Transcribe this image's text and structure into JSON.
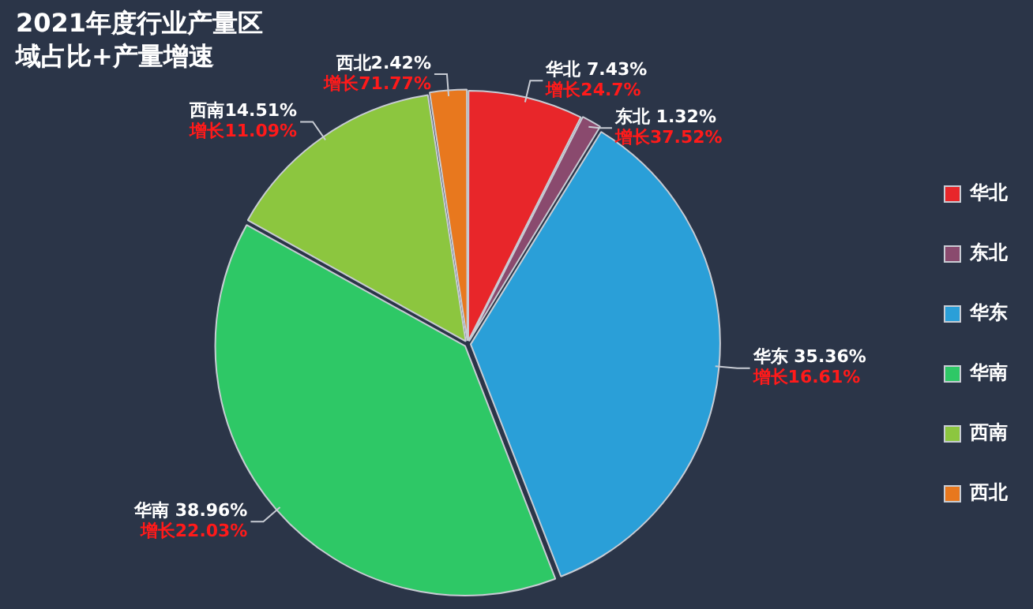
{
  "chart_data": {
    "type": "pie",
    "title": "2021年度行业产量区域占比+产量增速",
    "categories": [
      "华北",
      "东北",
      "华东",
      "华南",
      "西南",
      "西北"
    ],
    "values": [
      7.43,
      1.32,
      35.36,
      38.96,
      14.51,
      2.42
    ],
    "colors": [
      "#e8262a",
      "#8a4a6e",
      "#2a9fd8",
      "#2ec866",
      "#8cc63f",
      "#e8781e"
    ],
    "value_labels": [
      "华北 7.43%",
      "东北 1.32%",
      "华东 35.36%",
      "华南 38.96%",
      "西南14.51%",
      "西北2.42%"
    ],
    "annotations": [
      {
        "text": "增长24.7%",
        "x": "华北"
      },
      {
        "text": "增长37.52%",
        "x": "东北"
      },
      {
        "text": "增长16.61%",
        "x": "华东"
      },
      {
        "text": "增长22.03%",
        "x": "华南"
      },
      {
        "text": "增长11.09%",
        "x": "西南"
      },
      {
        "text": "增长71.77%",
        "x": "西北"
      }
    ],
    "legend": "right"
  }
}
